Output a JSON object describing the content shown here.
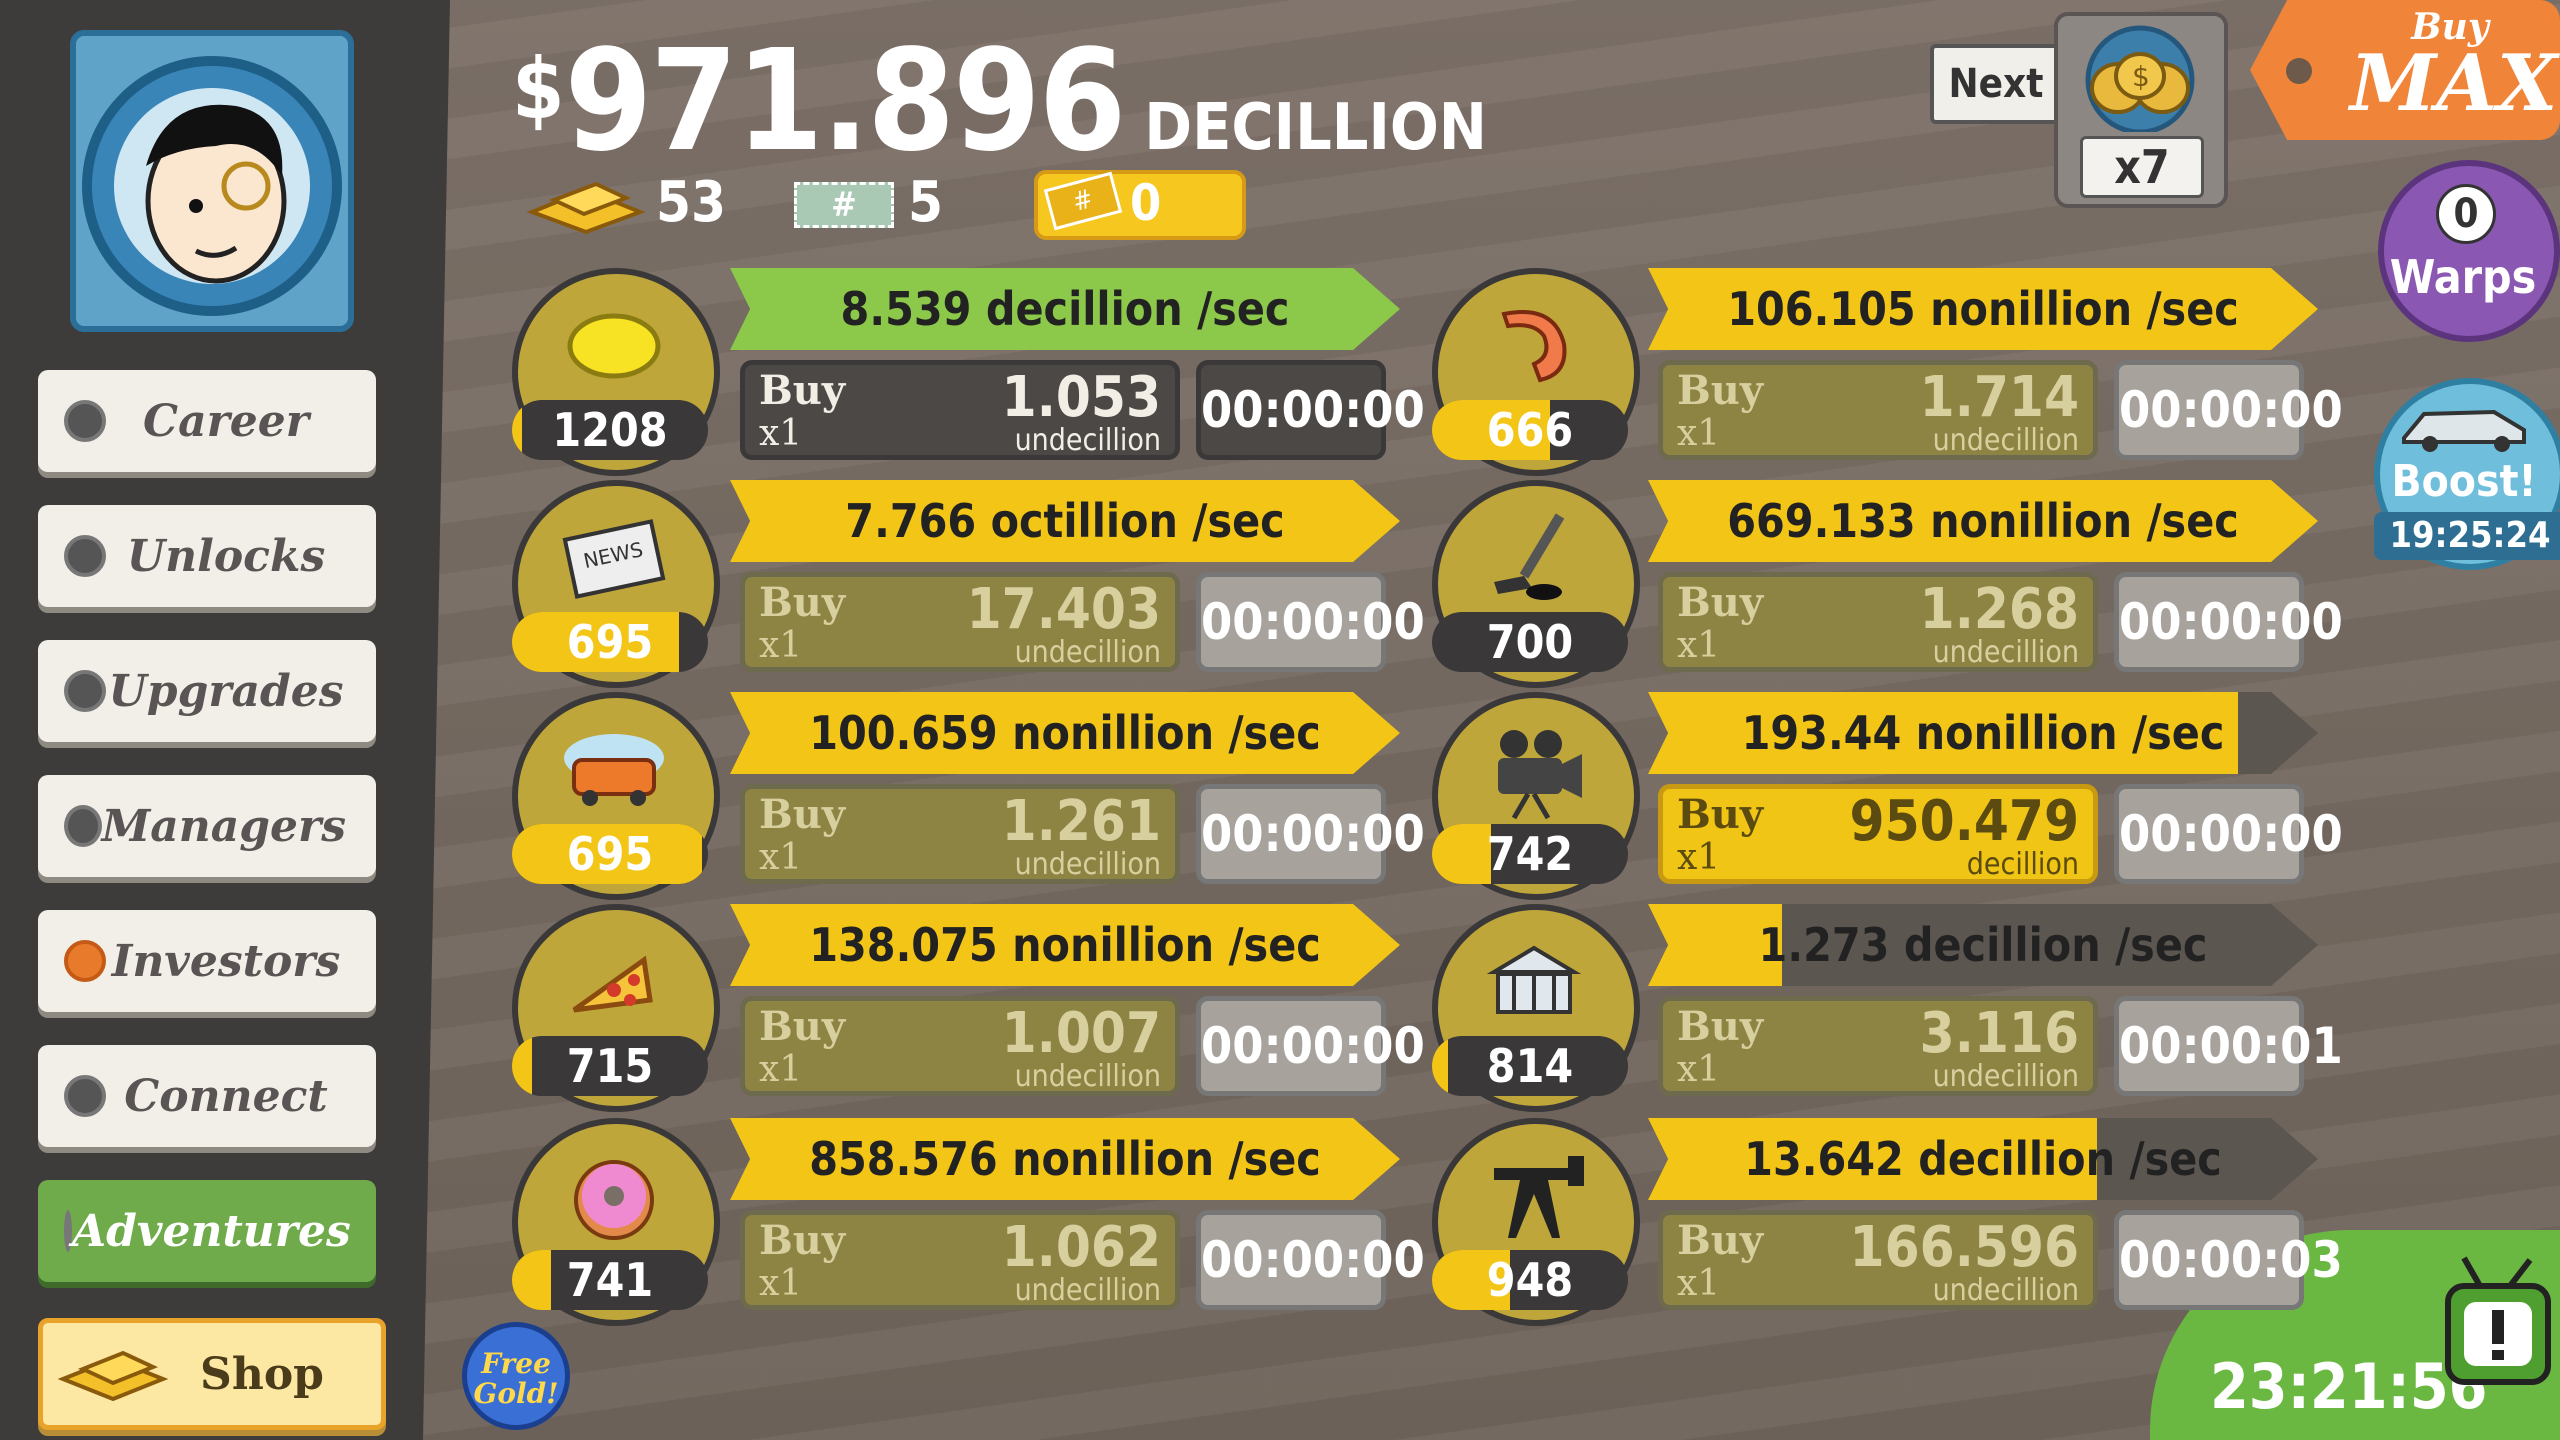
{
  "money": {
    "symbol": "$",
    "amount": "971.896",
    "unit": "DECILLION"
  },
  "resources": {
    "gold": "53",
    "megatickets": "5",
    "tickets": "0"
  },
  "sidebar": [
    {
      "label": "Career"
    },
    {
      "label": "Unlocks"
    },
    {
      "label": "Upgrades"
    },
    {
      "label": "Managers"
    },
    {
      "label": "Investors"
    },
    {
      "label": "Connect"
    },
    {
      "label": "Adventures"
    },
    {
      "label": "Shop"
    }
  ],
  "free_gold": "Free Gold!",
  "next_label": "Next",
  "multiplier": "x7",
  "buy_max": {
    "top": "Buy",
    "bottom": "MAX"
  },
  "warps": {
    "count": "0",
    "label": "Warps"
  },
  "boost": {
    "label": "Boost!",
    "time": "19:25:24"
  },
  "tv_time": "23:21:56",
  "buy_word": "Buy",
  "buy_qty": "x1",
  "businesses": [
    {
      "icon": "lemon-icon",
      "count": "1208",
      "count_progress": 0.05,
      "rate": "8.539 decillion /sec",
      "rate_progress": 1.0,
      "rate_color": "#8cc94a",
      "price": "1.053",
      "price_unit": "undecillion",
      "timer": "00:00:00",
      "affordable": "dark"
    },
    {
      "icon": "shrimp-icon",
      "count": "666",
      "count_progress": 0.6,
      "rate": "106.105 nonillion /sec",
      "rate_progress": 1.0,
      "rate_color": "#f3c516",
      "price": "1.714",
      "price_unit": "undecillion",
      "timer": "00:00:00",
      "affordable": "dim"
    },
    {
      "icon": "newspaper-icon",
      "count": "695",
      "count_progress": 0.85,
      "rate": "7.766 octillion /sec",
      "rate_progress": 1.0,
      "rate_color": "#f3c516",
      "price": "17.403",
      "price_unit": "undecillion",
      "timer": "00:00:00",
      "affordable": "dim"
    },
    {
      "icon": "hockey-icon",
      "count": "700",
      "count_progress": 0.0,
      "rate": "669.133 nonillion /sec",
      "rate_progress": 1.0,
      "rate_color": "#f3c516",
      "price": "1.268",
      "price_unit": "undecillion",
      "timer": "00:00:00",
      "affordable": "dim"
    },
    {
      "icon": "car-wash-icon",
      "count": "695",
      "count_progress": 0.97,
      "rate": "100.659 nonillion /sec",
      "rate_progress": 1.0,
      "rate_color": "#f3c516",
      "price": "1.261",
      "price_unit": "undecillion",
      "timer": "00:00:00",
      "affordable": "dim"
    },
    {
      "icon": "movie-camera-icon",
      "count": "742",
      "count_progress": 0.3,
      "rate": "193.44 nonillion /sec",
      "rate_progress": 0.88,
      "rate_color": "#f3c516",
      "price": "950.479",
      "price_unit": "decillion",
      "timer": "00:00:00",
      "affordable": "bright"
    },
    {
      "icon": "pizza-icon",
      "count": "715",
      "count_progress": 0.1,
      "rate": "138.075 nonillion /sec",
      "rate_progress": 1.0,
      "rate_color": "#f3c516",
      "price": "1.007",
      "price_unit": "undecillion",
      "timer": "00:00:00",
      "affordable": "dim"
    },
    {
      "icon": "bank-icon",
      "count": "814",
      "count_progress": 0.08,
      "rate": "1.273 decillion /sec",
      "rate_progress": 0.2,
      "rate_color": "#f3c516",
      "price": "3.116",
      "price_unit": "undecillion",
      "timer": "00:00:01",
      "affordable": "dim"
    },
    {
      "icon": "donut-icon",
      "count": "741",
      "count_progress": 0.2,
      "rate": "858.576 nonillion /sec",
      "rate_progress": 1.0,
      "rate_color": "#f3c516",
      "price": "1.062",
      "price_unit": "undecillion",
      "timer": "00:00:00",
      "affordable": "dim"
    },
    {
      "icon": "oil-rig-icon",
      "count": "948",
      "count_progress": 0.4,
      "rate": "13.642 decillion /sec",
      "rate_progress": 0.67,
      "rate_color": "#f3c516",
      "price": "166.596",
      "price_unit": "undecillion",
      "timer": "00:00:03",
      "affordable": "dim"
    }
  ]
}
